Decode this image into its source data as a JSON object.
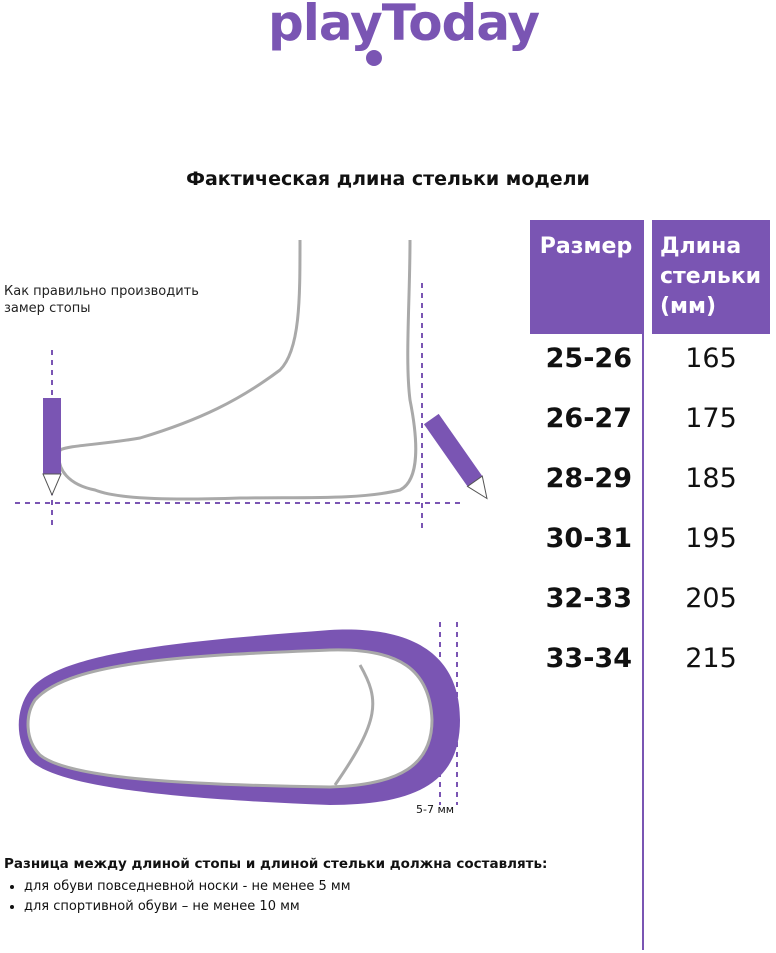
{
  "logo": {
    "text": "playToday",
    "color": "#7a55b3"
  },
  "title": "Фактическая длина стельки модели",
  "howto": "Как правильно производить замер стопы",
  "table": {
    "headers": [
      "Размер",
      "Длина стельки (мм)"
    ],
    "rows": [
      {
        "size": "25-26",
        "length": "165"
      },
      {
        "size": "26-27",
        "length": "175"
      },
      {
        "size": "28-29",
        "length": "185"
      },
      {
        "size": "30-31",
        "length": "195"
      },
      {
        "size": "32-33",
        "length": "205"
      },
      {
        "size": "33-34",
        "length": "215"
      }
    ]
  },
  "gap_label": "5-7 мм",
  "note": {
    "heading": "Разница между длиной стопы и длиной стельки должна составлять:",
    "items": [
      "для обуви повседневной носки -  не менее 5 мм",
      "для спортивной обуви – не менее 10 мм"
    ]
  },
  "colors": {
    "accent": "#7a55b3",
    "outline": "#a9a9a9"
  }
}
